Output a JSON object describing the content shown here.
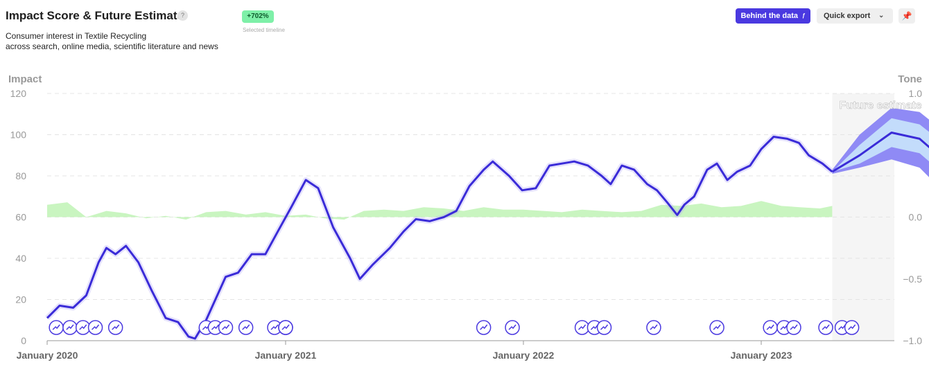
{
  "header": {
    "title": "Impact Score & Future Estimate",
    "help": "?",
    "subtitle_line1": "Consumer interest in Textile Recycling",
    "subtitle_line2": "across search, online media, scientific literature and news",
    "badge": "+702%",
    "badge_caption": "Selected timeline",
    "behind_data_label": "Behind the data",
    "quick_export_label": "Quick export",
    "pin_icon": "pin-icon",
    "chevron_icon": "chevron-down-icon"
  },
  "chart_data": {
    "type": "line",
    "left_axis_label": "Impact",
    "right_axis_label": "Tone",
    "left_ticks": [
      0,
      20,
      40,
      60,
      80,
      100,
      120
    ],
    "right_ticks": [
      "−1.0",
      "−0.5",
      "0.0",
      "0.5",
      "1.0"
    ],
    "x_tick_labels": [
      "January 2020",
      "January 2021",
      "January 2022",
      "January 2023"
    ],
    "ylim": [
      0,
      120
    ],
    "tone_ylim": [
      -1,
      1
    ],
    "future_label": "Future estimate",
    "colors": {
      "impact_line": "#3a2bd8",
      "tone_positive": "#c9f5c0",
      "tone_negative": "#f6c9c0",
      "band_outer": "#8f8af5",
      "band_inner": "#c3dcfb",
      "future_bg": "#f5f5f5",
      "event_marker": "#4a39e0"
    },
    "impact_series": [
      [
        "2020-01-01",
        11
      ],
      [
        "2020-01-20",
        17
      ],
      [
        "2020-02-10",
        16
      ],
      [
        "2020-03-01",
        22
      ],
      [
        "2020-03-20",
        38
      ],
      [
        "2020-04-01",
        45
      ],
      [
        "2020-04-15",
        42
      ],
      [
        "2020-05-01",
        46
      ],
      [
        "2020-05-20",
        38
      ],
      [
        "2020-06-10",
        24
      ],
      [
        "2020-07-01",
        11
      ],
      [
        "2020-07-20",
        9
      ],
      [
        "2020-08-05",
        2
      ],
      [
        "2020-08-15",
        1
      ],
      [
        "2020-09-01",
        10
      ],
      [
        "2020-10-01",
        31
      ],
      [
        "2020-10-20",
        33
      ],
      [
        "2020-11-10",
        42
      ],
      [
        "2020-12-01",
        42
      ],
      [
        "2020-12-20",
        53
      ],
      [
        "2021-01-10",
        65
      ],
      [
        "2021-02-01",
        78
      ],
      [
        "2021-02-20",
        74
      ],
      [
        "2021-03-15",
        55
      ],
      [
        "2021-04-10",
        40
      ],
      [
        "2021-04-25",
        30
      ],
      [
        "2021-05-15",
        37
      ],
      [
        "2021-06-10",
        45
      ],
      [
        "2021-07-01",
        53
      ],
      [
        "2021-07-20",
        59
      ],
      [
        "2021-08-10",
        58
      ],
      [
        "2021-09-01",
        60
      ],
      [
        "2021-09-20",
        63
      ],
      [
        "2021-10-10",
        75
      ],
      [
        "2021-11-01",
        83
      ],
      [
        "2021-11-15",
        87
      ],
      [
        "2021-12-10",
        80
      ],
      [
        "2021-12-30",
        73
      ],
      [
        "2022-01-20",
        74
      ],
      [
        "2022-02-10",
        85
      ],
      [
        "2022-03-01",
        86
      ],
      [
        "2022-03-20",
        87
      ],
      [
        "2022-04-10",
        85
      ],
      [
        "2022-05-01",
        80
      ],
      [
        "2022-05-15",
        76
      ],
      [
        "2022-06-01",
        85
      ],
      [
        "2022-06-20",
        83
      ],
      [
        "2022-07-10",
        76
      ],
      [
        "2022-07-25",
        73
      ],
      [
        "2022-08-10",
        67
      ],
      [
        "2022-08-25",
        61
      ],
      [
        "2022-09-05",
        66
      ],
      [
        "2022-09-20",
        70
      ],
      [
        "2022-10-10",
        83
      ],
      [
        "2022-10-25",
        86
      ],
      [
        "2022-11-10",
        78
      ],
      [
        "2022-11-25",
        82
      ],
      [
        "2022-12-15",
        85
      ],
      [
        "2023-01-01",
        93
      ],
      [
        "2023-01-20",
        99
      ],
      [
        "2023-02-10",
        98
      ],
      [
        "2023-02-28",
        96
      ],
      [
        "2023-03-15",
        90
      ],
      [
        "2023-04-05",
        86
      ],
      [
        "2023-04-20",
        82
      ]
    ],
    "tone_series": [
      [
        "2020-01-01",
        0.1
      ],
      [
        "2020-02-01",
        0.12
      ],
      [
        "2020-03-01",
        0.0
      ],
      [
        "2020-04-01",
        0.05
      ],
      [
        "2020-05-01",
        0.03
      ],
      [
        "2020-06-01",
        -0.01
      ],
      [
        "2020-07-01",
        0.01
      ],
      [
        "2020-08-01",
        -0.02
      ],
      [
        "2020-09-01",
        0.04
      ],
      [
        "2020-10-01",
        0.05
      ],
      [
        "2020-11-01",
        0.02
      ],
      [
        "2020-12-01",
        0.04
      ],
      [
        "2021-01-01",
        0.01
      ],
      [
        "2021-02-01",
        0.02
      ],
      [
        "2021-03-01",
        -0.01
      ],
      [
        "2021-04-01",
        -0.02
      ],
      [
        "2021-05-01",
        0.05
      ],
      [
        "2021-06-01",
        0.06
      ],
      [
        "2021-07-01",
        0.05
      ],
      [
        "2021-08-01",
        0.08
      ],
      [
        "2021-09-01",
        0.07
      ],
      [
        "2021-10-01",
        0.05
      ],
      [
        "2021-11-01",
        0.08
      ],
      [
        "2021-12-01",
        0.06
      ],
      [
        "2022-01-01",
        0.06
      ],
      [
        "2022-02-01",
        0.05
      ],
      [
        "2022-03-01",
        0.04
      ],
      [
        "2022-04-01",
        0.06
      ],
      [
        "2022-05-01",
        0.05
      ],
      [
        "2022-06-01",
        0.04
      ],
      [
        "2022-07-01",
        0.05
      ],
      [
        "2022-08-01",
        0.1
      ],
      [
        "2022-09-01",
        0.09
      ],
      [
        "2022-10-01",
        0.11
      ],
      [
        "2022-11-01",
        0.08
      ],
      [
        "2022-12-01",
        0.09
      ],
      [
        "2023-01-01",
        0.13
      ],
      [
        "2023-02-01",
        0.09
      ],
      [
        "2023-03-01",
        0.08
      ],
      [
        "2023-04-01",
        0.07
      ],
      [
        "2023-04-20",
        0.09
      ]
    ],
    "forecast": [
      {
        "date": "2023-04-20",
        "mid": 82,
        "inner_low": 82,
        "inner_high": 82,
        "outer_low": 81,
        "outer_high": 83
      },
      {
        "date": "2023-06-01",
        "mid": 90,
        "inner_low": 86,
        "inner_high": 95,
        "outer_low": 84,
        "outer_high": 100
      },
      {
        "date": "2023-07-20",
        "mid": 101,
        "inner_low": 94,
        "inner_high": 108,
        "outer_low": 88,
        "outer_high": 113
      },
      {
        "date": "2023-09-01",
        "mid": 98,
        "inner_low": 91,
        "inner_high": 105,
        "outer_low": 84,
        "outer_high": 111
      },
      {
        "date": "2023-10-15",
        "mid": 86,
        "inner_low": 79,
        "inner_high": 94,
        "outer_low": 70,
        "outer_high": 100
      },
      {
        "date": "2023-12-01",
        "mid": 71,
        "inner_low": 62,
        "inner_high": 80,
        "outer_low": 53,
        "outer_high": 86
      },
      {
        "date": "2024-01-05",
        "mid": 70,
        "inner_low": 61,
        "inner_high": 80,
        "outer_low": 52,
        "outer_high": 85
      },
      {
        "date": "2024-02-15",
        "mid": 77,
        "inner_low": 68,
        "inner_high": 87,
        "outer_low": 58,
        "outer_high": 101
      },
      {
        "date": "2024-04-01",
        "mid": 82,
        "inner_low": 72,
        "inner_high": 88,
        "outer_low": 62,
        "outer_high": 106
      },
      {
        "date": "2024-05-10",
        "mid": 88,
        "inner_low": 76,
        "inner_high": 96,
        "outer_low": 67,
        "outer_high": 107
      },
      {
        "date": "2024-06-20",
        "mid": 83,
        "inner_low": 69,
        "inner_high": 92,
        "outer_low": 60,
        "outer_high": 103
      },
      {
        "date": "2024-08-15",
        "mid": 84,
        "inner_low": 72,
        "inner_high": 100,
        "outer_low": 60,
        "outer_high": 112
      },
      {
        "date": "2024-10-01",
        "mid": 90,
        "inner_low": 78,
        "inner_high": 108,
        "outer_low": 65,
        "outer_high": 118
      },
      {
        "date": "2024-11-05",
        "mid": 94,
        "inner_low": 81,
        "inner_high": 113,
        "outer_low": 68,
        "outer_high": 120
      }
    ],
    "event_dates": [
      "2020-01-15",
      "2020-02-05",
      "2020-02-25",
      "2020-03-15",
      "2020-04-15",
      "2020-09-01",
      "2020-09-15",
      "2020-10-01",
      "2020-11-01",
      "2020-12-15",
      "2021-01-01",
      "2021-01-01",
      "2021-01-01",
      "2021-11-01",
      "2021-12-15",
      "2022-04-01",
      "2022-04-20",
      "2022-05-05",
      "2022-07-20",
      "2022-10-25",
      "2023-01-15",
      "2023-02-05",
      "2023-02-20",
      "2023-04-10",
      "2023-05-05",
      "2023-05-20"
    ]
  }
}
